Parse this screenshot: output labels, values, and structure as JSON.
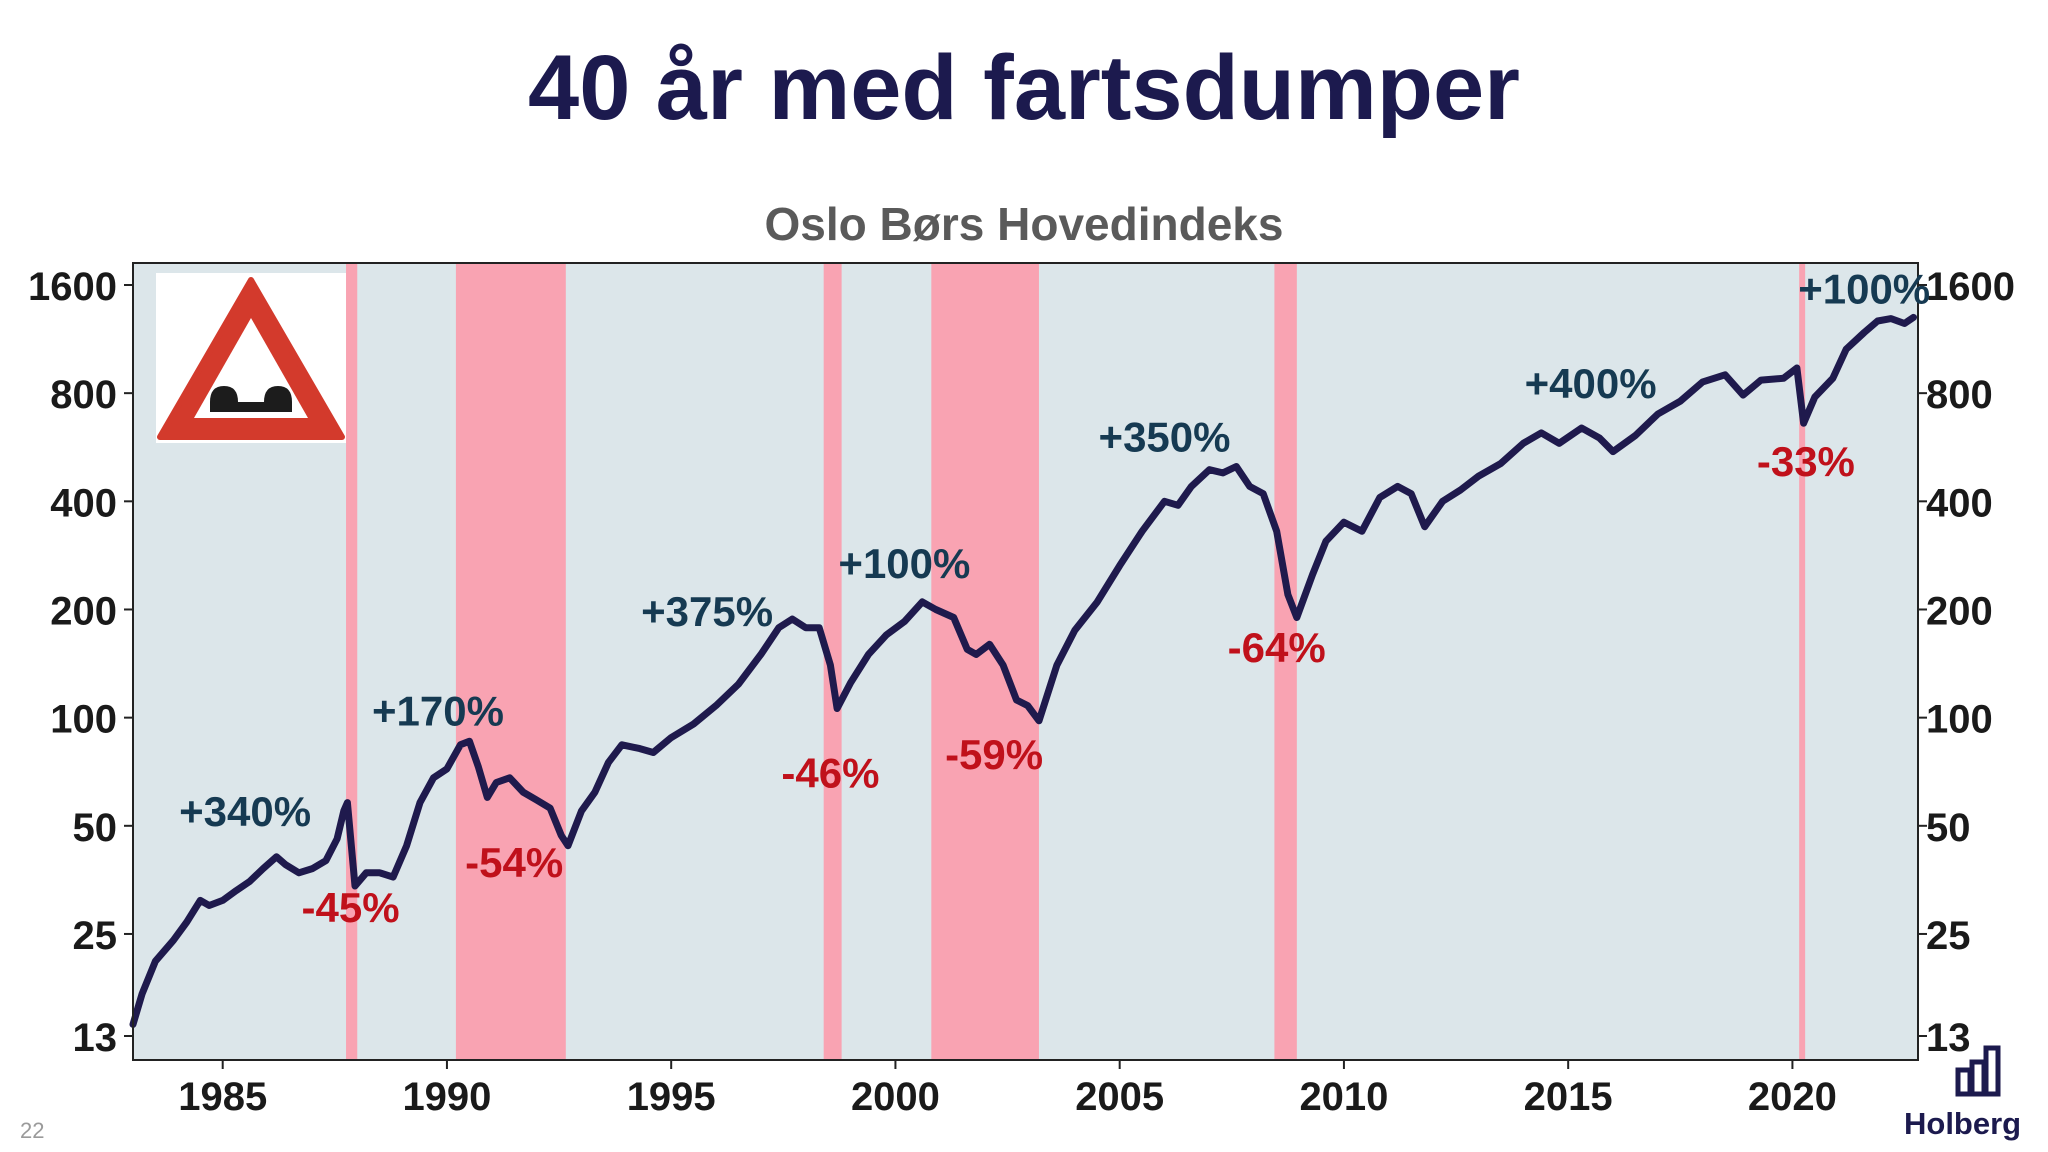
{
  "slide": {
    "title": "40 år med fartsdumper",
    "page_number": "22",
    "logo_text": "Holberg"
  },
  "colors": {
    "title": "#1c1a4e",
    "plot_background": "#dce6ea",
    "recession_band": "#f9a3b2",
    "line": "#1f1a4d",
    "gain_label": "#163a52",
    "loss_label": "#c0111b",
    "chart_title": "#5a5a5a"
  },
  "icons": {
    "warning_sign": "speed-bump-warning-sign-icon",
    "logo": "holberg-logo-icon"
  },
  "chart_data": {
    "type": "line",
    "title": "Oslo Børs Hovedindeks",
    "xlabel": "",
    "ylabel": "",
    "y_scale": "log2",
    "ylim": [
      13,
      1600
    ],
    "xlim": [
      1983.0,
      2022.8
    ],
    "y_ticks": [
      13,
      25,
      50,
      100,
      200,
      400,
      800,
      1600
    ],
    "y_tick_labels": [
      "13",
      "25",
      "50",
      "100",
      "200",
      "400",
      "800",
      "1600"
    ],
    "x_ticks": [
      1985,
      1990,
      1995,
      2000,
      2005,
      2010,
      2015,
      2020
    ],
    "x_tick_labels": [
      "1985",
      "1990",
      "1995",
      "2000",
      "2005",
      "2010",
      "2015",
      "2020"
    ],
    "grid": false,
    "bear_market_periods": [
      [
        1987.75,
        1988.0
      ],
      [
        1990.2,
        1992.65
      ],
      [
        1998.4,
        1998.8
      ],
      [
        2000.8,
        2003.2
      ],
      [
        2008.45,
        2008.95
      ],
      [
        2020.15,
        2020.25
      ]
    ],
    "series": [
      {
        "values": [
          [
            1983.0,
            14
          ],
          [
            1983.2,
            17
          ],
          [
            1983.5,
            21
          ],
          [
            1983.9,
            24
          ],
          [
            1984.2,
            27
          ],
          [
            1984.5,
            31
          ],
          [
            1984.7,
            30
          ],
          [
            1985.0,
            31
          ],
          [
            1985.3,
            33
          ],
          [
            1985.6,
            35
          ],
          [
            1985.9,
            38
          ],
          [
            1986.2,
            41
          ],
          [
            1986.4,
            39
          ],
          [
            1986.7,
            37
          ],
          [
            1987.0,
            38
          ],
          [
            1987.3,
            40
          ],
          [
            1987.55,
            46
          ],
          [
            1987.7,
            55
          ],
          [
            1987.78,
            58
          ],
          [
            1987.95,
            34
          ],
          [
            1988.2,
            37
          ],
          [
            1988.5,
            37
          ],
          [
            1988.8,
            36
          ],
          [
            1989.1,
            44
          ],
          [
            1989.4,
            58
          ],
          [
            1989.7,
            68
          ],
          [
            1990.0,
            72
          ],
          [
            1990.3,
            84
          ],
          [
            1990.5,
            86
          ],
          [
            1990.7,
            73
          ],
          [
            1990.9,
            60
          ],
          [
            1991.1,
            66
          ],
          [
            1991.4,
            68
          ],
          [
            1991.7,
            62
          ],
          [
            1992.0,
            59
          ],
          [
            1992.3,
            56
          ],
          [
            1992.55,
            47
          ],
          [
            1992.7,
            44
          ],
          [
            1993.0,
            55
          ],
          [
            1993.3,
            62
          ],
          [
            1993.6,
            75
          ],
          [
            1993.9,
            84
          ],
          [
            1994.3,
            82
          ],
          [
            1994.6,
            80
          ],
          [
            1995.0,
            88
          ],
          [
            1995.5,
            96
          ],
          [
            1996.0,
            108
          ],
          [
            1996.5,
            124
          ],
          [
            1997.0,
            150
          ],
          [
            1997.4,
            178
          ],
          [
            1997.7,
            188
          ],
          [
            1998.0,
            178
          ],
          [
            1998.3,
            178
          ],
          [
            1998.55,
            140
          ],
          [
            1998.7,
            106
          ],
          [
            1999.0,
            125
          ],
          [
            1999.4,
            150
          ],
          [
            1999.8,
            170
          ],
          [
            2000.2,
            185
          ],
          [
            2000.6,
            210
          ],
          [
            2000.9,
            200
          ],
          [
            2001.3,
            190
          ],
          [
            2001.6,
            155
          ],
          [
            2001.8,
            150
          ],
          [
            2002.1,
            160
          ],
          [
            2002.4,
            140
          ],
          [
            2002.7,
            112
          ],
          [
            2002.95,
            108
          ],
          [
            2003.2,
            98
          ],
          [
            2003.6,
            140
          ],
          [
            2004.0,
            175
          ],
          [
            2004.5,
            210
          ],
          [
            2005.0,
            265
          ],
          [
            2005.5,
            330
          ],
          [
            2006.0,
            400
          ],
          [
            2006.3,
            390
          ],
          [
            2006.6,
            440
          ],
          [
            2007.0,
            490
          ],
          [
            2007.3,
            480
          ],
          [
            2007.6,
            500
          ],
          [
            2007.9,
            440
          ],
          [
            2008.2,
            420
          ],
          [
            2008.5,
            330
          ],
          [
            2008.75,
            220
          ],
          [
            2008.95,
            190
          ],
          [
            2009.3,
            250
          ],
          [
            2009.6,
            310
          ],
          [
            2010.0,
            350
          ],
          [
            2010.4,
            330
          ],
          [
            2010.8,
            410
          ],
          [
            2011.2,
            440
          ],
          [
            2011.5,
            420
          ],
          [
            2011.8,
            340
          ],
          [
            2012.2,
            400
          ],
          [
            2012.6,
            430
          ],
          [
            2013.0,
            470
          ],
          [
            2013.5,
            510
          ],
          [
            2014.0,
            580
          ],
          [
            2014.4,
            620
          ],
          [
            2014.8,
            580
          ],
          [
            2015.3,
            640
          ],
          [
            2015.7,
            600
          ],
          [
            2016.0,
            550
          ],
          [
            2016.5,
            610
          ],
          [
            2017.0,
            700
          ],
          [
            2017.5,
            760
          ],
          [
            2018.0,
            860
          ],
          [
            2018.5,
            900
          ],
          [
            2018.9,
            790
          ],
          [
            2019.3,
            870
          ],
          [
            2019.8,
            880
          ],
          [
            2020.1,
            940
          ],
          [
            2020.25,
            660
          ],
          [
            2020.5,
            780
          ],
          [
            2020.9,
            880
          ],
          [
            2021.2,
            1060
          ],
          [
            2021.6,
            1180
          ],
          [
            2021.9,
            1270
          ],
          [
            2022.2,
            1290
          ],
          [
            2022.5,
            1250
          ],
          [
            2022.7,
            1300
          ]
        ]
      }
    ],
    "annotations": [
      {
        "text": "+340%",
        "kind": "gain",
        "x": 1985.5,
        "y": 50
      },
      {
        "text": "-45%",
        "kind": "loss",
        "x": 1987.85,
        "y": 27
      },
      {
        "text": "+170%",
        "kind": "gain",
        "x": 1989.8,
        "y": 95
      },
      {
        "text": "-54%",
        "kind": "loss",
        "x": 1991.5,
        "y": 36
      },
      {
        "text": "+375%",
        "kind": "gain",
        "x": 1995.8,
        "y": 180
      },
      {
        "text": "-46%",
        "kind": "loss",
        "x": 1998.55,
        "y": 64
      },
      {
        "text": "+100%",
        "kind": "gain",
        "x": 2000.2,
        "y": 245
      },
      {
        "text": "-59%",
        "kind": "loss",
        "x": 2002.2,
        "y": 72
      },
      {
        "text": "+350%",
        "kind": "gain",
        "x": 2006.0,
        "y": 550
      },
      {
        "text": "-64%",
        "kind": "loss",
        "x": 2008.5,
        "y": 143
      },
      {
        "text": "+400%",
        "kind": "gain",
        "x": 2015.5,
        "y": 775
      },
      {
        "text": "-33%",
        "kind": "loss",
        "x": 2020.3,
        "y": 470
      },
      {
        "text": "+100%",
        "kind": "gain",
        "x": 2021.6,
        "y": 1420
      }
    ]
  }
}
